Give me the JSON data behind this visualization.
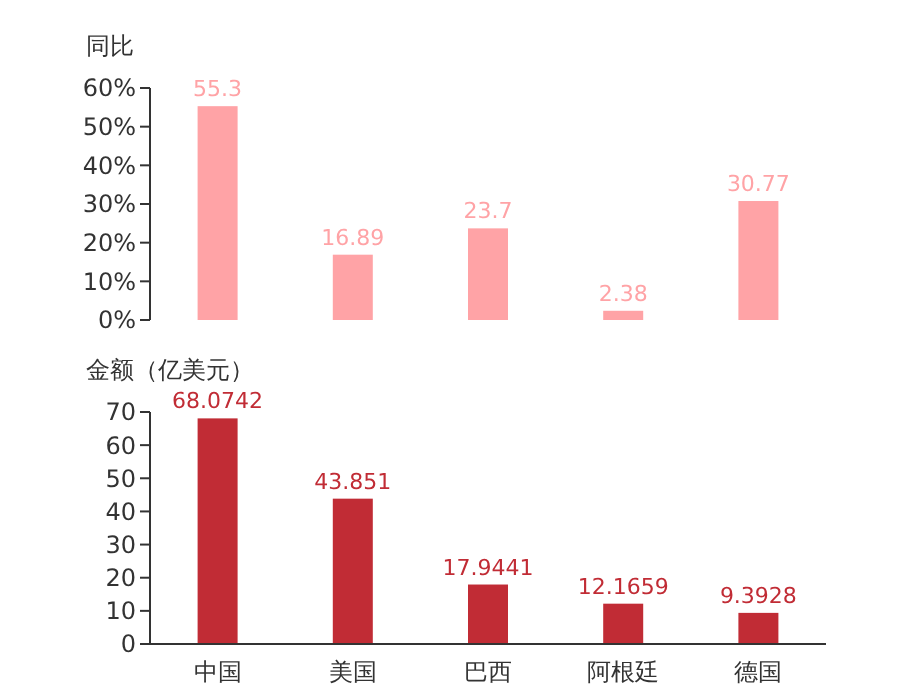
{
  "chart_data": [
    {
      "type": "bar",
      "ylabel": "同比",
      "categories": [
        null,
        null,
        null,
        null,
        null
      ],
      "values": [
        55.3,
        16.89,
        23.7,
        2.38,
        30.77
      ],
      "color": "#ffa3a6",
      "ylim": [
        0,
        60
      ],
      "yticks": [
        {
          "value": 0,
          "label": "0%"
        },
        {
          "value": 10,
          "label": "10%"
        },
        {
          "value": 20,
          "label": "20%"
        },
        {
          "value": 30,
          "label": "30%"
        },
        {
          "value": 40,
          "label": "40%"
        },
        {
          "value": 50,
          "label": "50%"
        },
        {
          "value": 60,
          "label": "60%"
        }
      ],
      "data_labels": true,
      "tick_labels": "y"
    },
    {
      "type": "bar",
      "ylabel": "金额（亿美元）",
      "categories": [
        "中国",
        "美国",
        "巴西",
        "阿根廷",
        "德国"
      ],
      "values": [
        68.0742,
        43.851,
        17.9441,
        12.1659,
        9.3928
      ],
      "color": "#c12c35",
      "ylim": [
        0,
        70
      ],
      "yticks": [
        0,
        10,
        20,
        30,
        40,
        50,
        60,
        70
      ],
      "data_labels": true
    }
  ]
}
